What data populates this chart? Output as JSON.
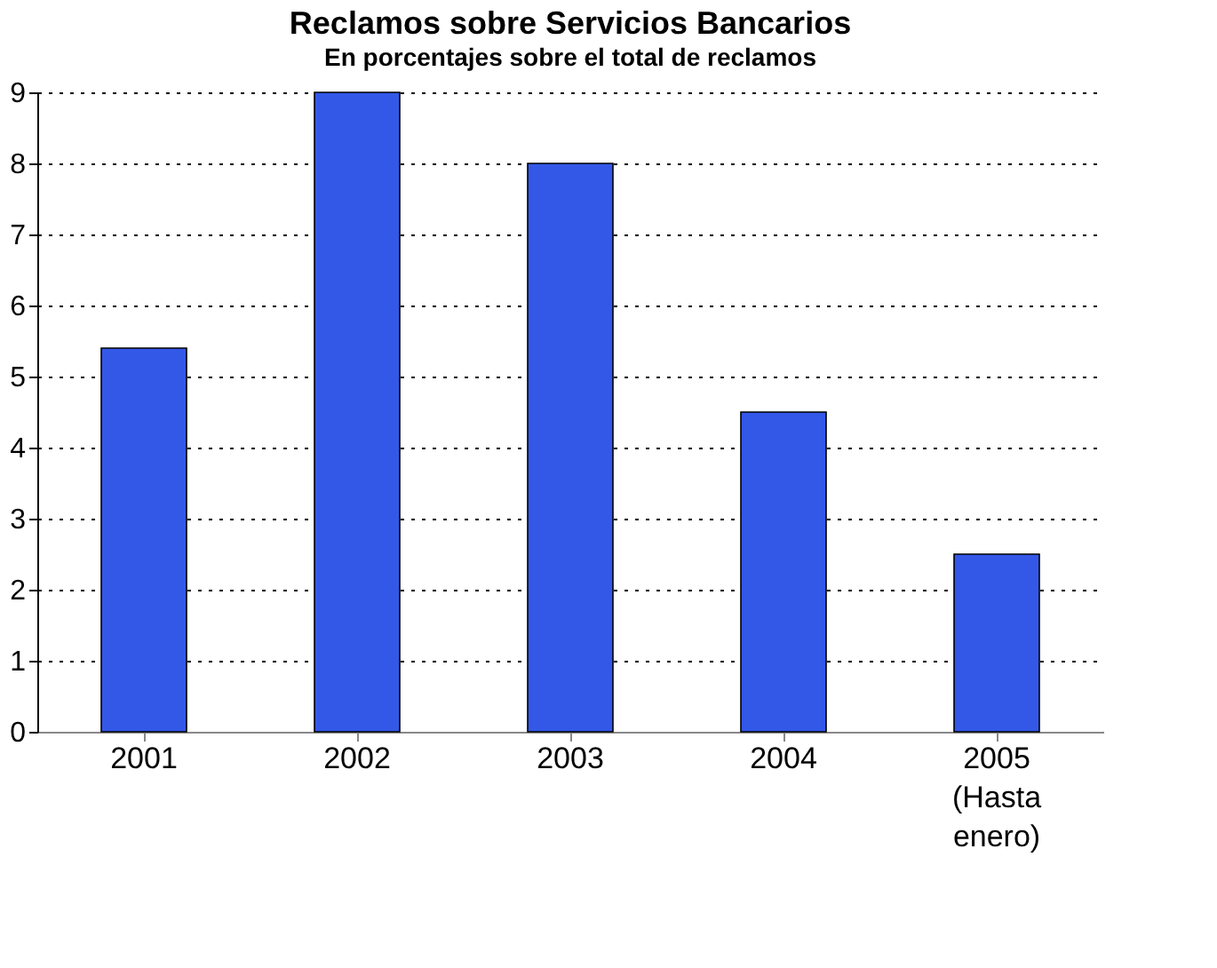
{
  "chart_data": {
    "type": "bar",
    "title": "Reclamos sobre Servicios Bancarios",
    "subtitle": "En porcentajes sobre el total de reclamos",
    "categories": [
      "2001",
      "2002",
      "2003",
      "2004",
      "2005\n(Hasta\nenero)"
    ],
    "values": [
      5.4,
      9.0,
      8.0,
      4.5,
      2.5
    ],
    "color": "#3358e8",
    "ylim": [
      0,
      9
    ],
    "yticks": [
      0,
      1,
      2,
      3,
      4,
      5,
      6,
      7,
      8,
      9
    ],
    "grid": "y",
    "line_style": "dotted"
  }
}
